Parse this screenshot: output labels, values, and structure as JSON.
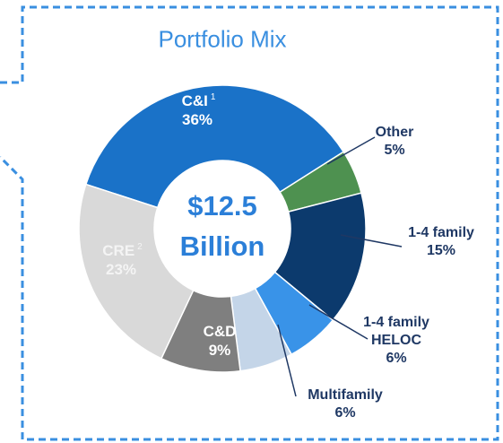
{
  "chart_data": {
    "type": "donut",
    "title": "Portfolio Mix",
    "categories": [
      "C&I",
      "Other",
      "1-4 family",
      "1-4 family HELOC",
      "Multifamily",
      "C&D",
      "CRE"
    ],
    "category_notes": [
      "1",
      null,
      null,
      null,
      null,
      null,
      "2"
    ],
    "values": [
      36,
      5,
      15,
      6,
      6,
      9,
      23
    ],
    "value_labels": [
      "36%",
      "5%",
      "15%",
      "6%",
      "6%",
      "9%",
      "23%"
    ],
    "colors": [
      "#1a72c8",
      "#4e9150",
      "#0c3a6d",
      "#3993e8",
      "#c4d5e8",
      "#7f7f7f",
      "#d9d9d9"
    ],
    "center_value": "$12.5",
    "center_unit": "Billion"
  }
}
